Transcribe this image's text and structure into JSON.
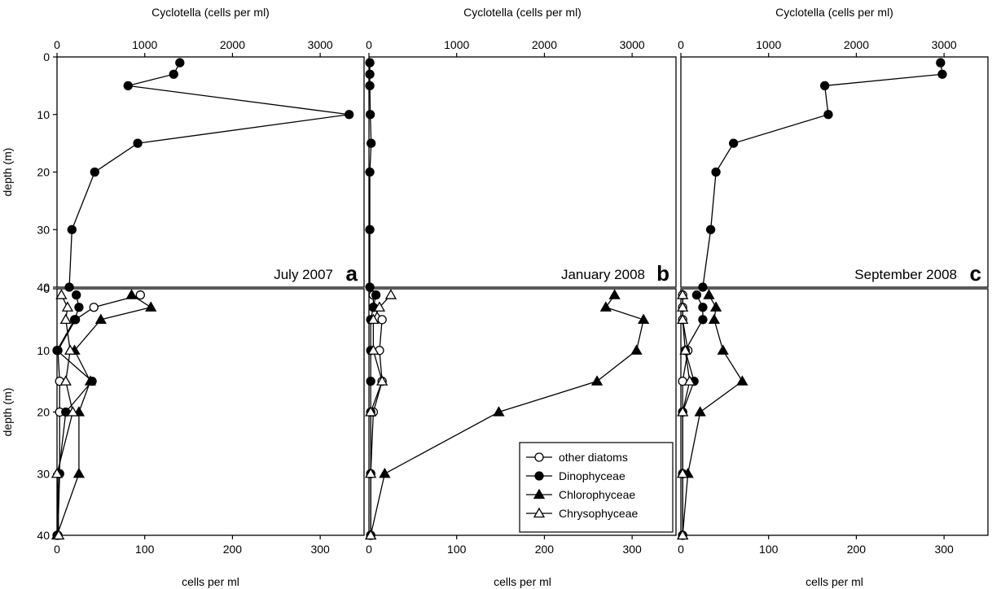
{
  "chart_data": [
    {
      "type": "line",
      "panel": "a",
      "period": "July 2007",
      "xlabel": "Cyclotella (cells per ml)",
      "ylabel": "depth (m)",
      "xlim": [
        0,
        3500
      ],
      "ylim": [
        0,
        40
      ],
      "xticks": [
        "0",
        "1000",
        "2000",
        "3000"
      ],
      "yticks": [
        "0",
        "10",
        "20",
        "30",
        "40"
      ],
      "y_inverted": true,
      "series": [
        {
          "marker": "filled-circle",
          "x": [
            1400,
            1330,
            810,
            3330,
            920,
            430,
            170,
            140
          ],
          "y": [
            1,
            3,
            5,
            10,
            15,
            20,
            30,
            40
          ]
        }
      ]
    },
    {
      "type": "line",
      "panel": "b",
      "period": "January 2008",
      "xlabel": "Cyclotella (cells per ml)",
      "xlim": [
        0,
        3500
      ],
      "ylim": [
        0,
        40
      ],
      "xticks": [
        "0",
        "1000",
        "2000",
        "3000"
      ],
      "y_inverted": true,
      "series": [
        {
          "marker": "filled-circle",
          "x": [
            10,
            10,
            10,
            15,
            25,
            10,
            10,
            10
          ],
          "y": [
            1,
            3,
            5,
            10,
            15,
            20,
            30,
            40
          ]
        }
      ]
    },
    {
      "type": "line",
      "panel": "c",
      "period": "September 2008",
      "xlabel": "Cyclotella (cells per ml)",
      "xlim": [
        0,
        3500
      ],
      "ylim": [
        0,
        40
      ],
      "xticks": [
        "0",
        "1000",
        "2000",
        "3000"
      ],
      "y_inverted": true,
      "series": [
        {
          "marker": "filled-circle",
          "x": [
            2960,
            2980,
            1640,
            1680,
            600,
            400,
            340,
            250
          ],
          "y": [
            1,
            3,
            5,
            10,
            15,
            20,
            30,
            40
          ]
        }
      ]
    },
    {
      "type": "line",
      "panel": "a",
      "xlabel": "cells per ml",
      "ylabel": "depth (m)",
      "xlim": [
        0,
        350
      ],
      "ylim": [
        0,
        40
      ],
      "xticks": [
        "0",
        "100",
        "200",
        "300"
      ],
      "yticks": [
        "0",
        "10",
        "20",
        "30",
        "40"
      ],
      "y_inverted": true,
      "series": [
        {
          "name": "other diatoms",
          "marker": "open-circle",
          "x": [
            95,
            42,
            21,
            1,
            3,
            3,
            3,
            1
          ],
          "y": [
            1,
            3,
            5,
            10,
            15,
            20,
            30,
            40
          ]
        },
        {
          "name": "Dinophyceae",
          "marker": "filled-circle",
          "x": [
            22,
            25,
            20,
            0,
            40,
            10,
            2,
            0
          ],
          "y": [
            1,
            3,
            5,
            10,
            15,
            20,
            30,
            40
          ]
        },
        {
          "name": "Chlorophyceae",
          "marker": "filled-triangle",
          "x": [
            85,
            107,
            50,
            20,
            38,
            25,
            25,
            0
          ],
          "y": [
            1,
            3,
            5,
            10,
            15,
            20,
            30,
            40
          ]
        },
        {
          "name": "Chrysophyceae",
          "marker": "open-triangle",
          "x": [
            5,
            12,
            10,
            15,
            10,
            18,
            0,
            2
          ],
          "y": [
            1,
            3,
            5,
            10,
            15,
            20,
            30,
            40
          ]
        }
      ]
    },
    {
      "type": "line",
      "panel": "b",
      "xlabel": "cells per ml",
      "xlim": [
        0,
        350
      ],
      "ylim": [
        0,
        40
      ],
      "xticks": [
        "0",
        "100",
        "200",
        "300"
      ],
      "y_inverted": true,
      "series": [
        {
          "name": "other diatoms",
          "marker": "open-circle",
          "x": [
            5,
            5,
            15,
            12,
            15,
            5,
            2,
            2
          ],
          "y": [
            1,
            3,
            5,
            10,
            15,
            20,
            30,
            40
          ]
        },
        {
          "name": "Dinophyceae",
          "marker": "filled-circle",
          "x": [
            8,
            5,
            2,
            2,
            2,
            2,
            2,
            2
          ],
          "y": [
            1,
            3,
            5,
            10,
            15,
            20,
            30,
            40
          ]
        },
        {
          "name": "Chlorophyceae",
          "marker": "filled-triangle",
          "x": [
            280,
            270,
            313,
            305,
            260,
            148,
            18,
            2
          ],
          "y": [
            1,
            3,
            5,
            10,
            15,
            20,
            30,
            40
          ]
        },
        {
          "name": "Chrysophyceae",
          "marker": "open-triangle",
          "x": [
            25,
            12,
            5,
            5,
            15,
            2,
            2,
            2
          ],
          "y": [
            1,
            3,
            5,
            10,
            15,
            20,
            30,
            40
          ]
        }
      ]
    },
    {
      "type": "line",
      "panel": "c",
      "xlabel": "cells per ml",
      "xlim": [
        0,
        350
      ],
      "ylim": [
        0,
        40
      ],
      "xticks": [
        "0",
        "100",
        "200",
        "300"
      ],
      "y_inverted": true,
      "series": [
        {
          "name": "other diatoms",
          "marker": "open-circle",
          "x": [
            2,
            2,
            2,
            8,
            2,
            2,
            2,
            2
          ],
          "y": [
            1,
            3,
            5,
            10,
            15,
            20,
            30,
            40
          ]
        },
        {
          "name": "Dinophyceae",
          "marker": "filled-circle",
          "x": [
            18,
            25,
            25,
            5,
            15,
            2,
            2,
            2
          ],
          "y": [
            1,
            3,
            5,
            10,
            15,
            20,
            30,
            40
          ]
        },
        {
          "name": "Chlorophyceae",
          "marker": "filled-triangle",
          "x": [
            32,
            40,
            38,
            48,
            70,
            22,
            8,
            2
          ],
          "y": [
            1,
            3,
            5,
            10,
            15,
            20,
            30,
            40
          ]
        },
        {
          "name": "Chrysophyceae",
          "marker": "open-triangle",
          "x": [
            2,
            2,
            2,
            5,
            10,
            2,
            2,
            2
          ],
          "y": [
            1,
            3,
            5,
            10,
            15,
            20,
            30,
            40
          ]
        }
      ]
    }
  ],
  "legend": {
    "location": "bottom-right of lower panel b",
    "entries": [
      {
        "label": "other diatoms",
        "marker": "open-circle"
      },
      {
        "label": "Dinophyceae",
        "marker": "filled-circle"
      },
      {
        "label": "Chlorophyceae",
        "marker": "filled-triangle"
      },
      {
        "label": "Chrysophyceae",
        "marker": "open-triangle"
      }
    ]
  },
  "colors": {
    "line": "#000000",
    "fill": "#000000",
    "open_fill": "#ffffff",
    "background": "#ffffff"
  }
}
